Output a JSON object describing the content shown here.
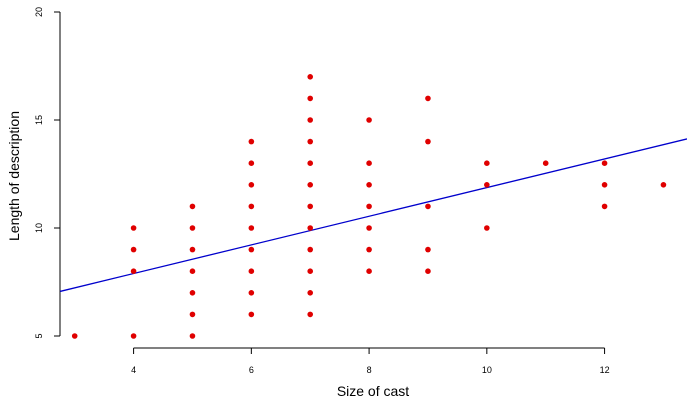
{
  "chart_data": {
    "type": "scatter",
    "xlabel": "Size of cast",
    "ylabel": "Length of description",
    "xlim": [
      2.75,
      13.4
    ],
    "ylim": [
      5,
      20
    ],
    "x_ticks": [
      4,
      6,
      8,
      10,
      12
    ],
    "y_ticks": [
      5,
      10,
      15,
      20
    ],
    "grid": false,
    "point_color": "#e00000",
    "line_color": "#0000cc",
    "points": [
      [
        3,
        5
      ],
      [
        4,
        5
      ],
      [
        4,
        8
      ],
      [
        4,
        9
      ],
      [
        4,
        10
      ],
      [
        5,
        5
      ],
      [
        5,
        6
      ],
      [
        5,
        7
      ],
      [
        5,
        8
      ],
      [
        5,
        9
      ],
      [
        5,
        10
      ],
      [
        5,
        11
      ],
      [
        6,
        6
      ],
      [
        6,
        7
      ],
      [
        6,
        8
      ],
      [
        6,
        9
      ],
      [
        6,
        10
      ],
      [
        6,
        11
      ],
      [
        6,
        12
      ],
      [
        6,
        13
      ],
      [
        6,
        14
      ],
      [
        7,
        6
      ],
      [
        7,
        7
      ],
      [
        7,
        8
      ],
      [
        7,
        9
      ],
      [
        7,
        10
      ],
      [
        7,
        11
      ],
      [
        7,
        12
      ],
      [
        7,
        13
      ],
      [
        7,
        14
      ],
      [
        7,
        15
      ],
      [
        7,
        16
      ],
      [
        7,
        17
      ],
      [
        8,
        8
      ],
      [
        8,
        9
      ],
      [
        8,
        10
      ],
      [
        8,
        11
      ],
      [
        8,
        12
      ],
      [
        8,
        13
      ],
      [
        8,
        15
      ],
      [
        9,
        8
      ],
      [
        9,
        9
      ],
      [
        9,
        11
      ],
      [
        9,
        14
      ],
      [
        9,
        16
      ],
      [
        10,
        10
      ],
      [
        10,
        12
      ],
      [
        10,
        13
      ],
      [
        11,
        13
      ],
      [
        12,
        11
      ],
      [
        12,
        12
      ],
      [
        12,
        13
      ],
      [
        13,
        12
      ]
    ],
    "regression_line": {
      "intercept": 5.24,
      "slope": 0.663
    }
  }
}
